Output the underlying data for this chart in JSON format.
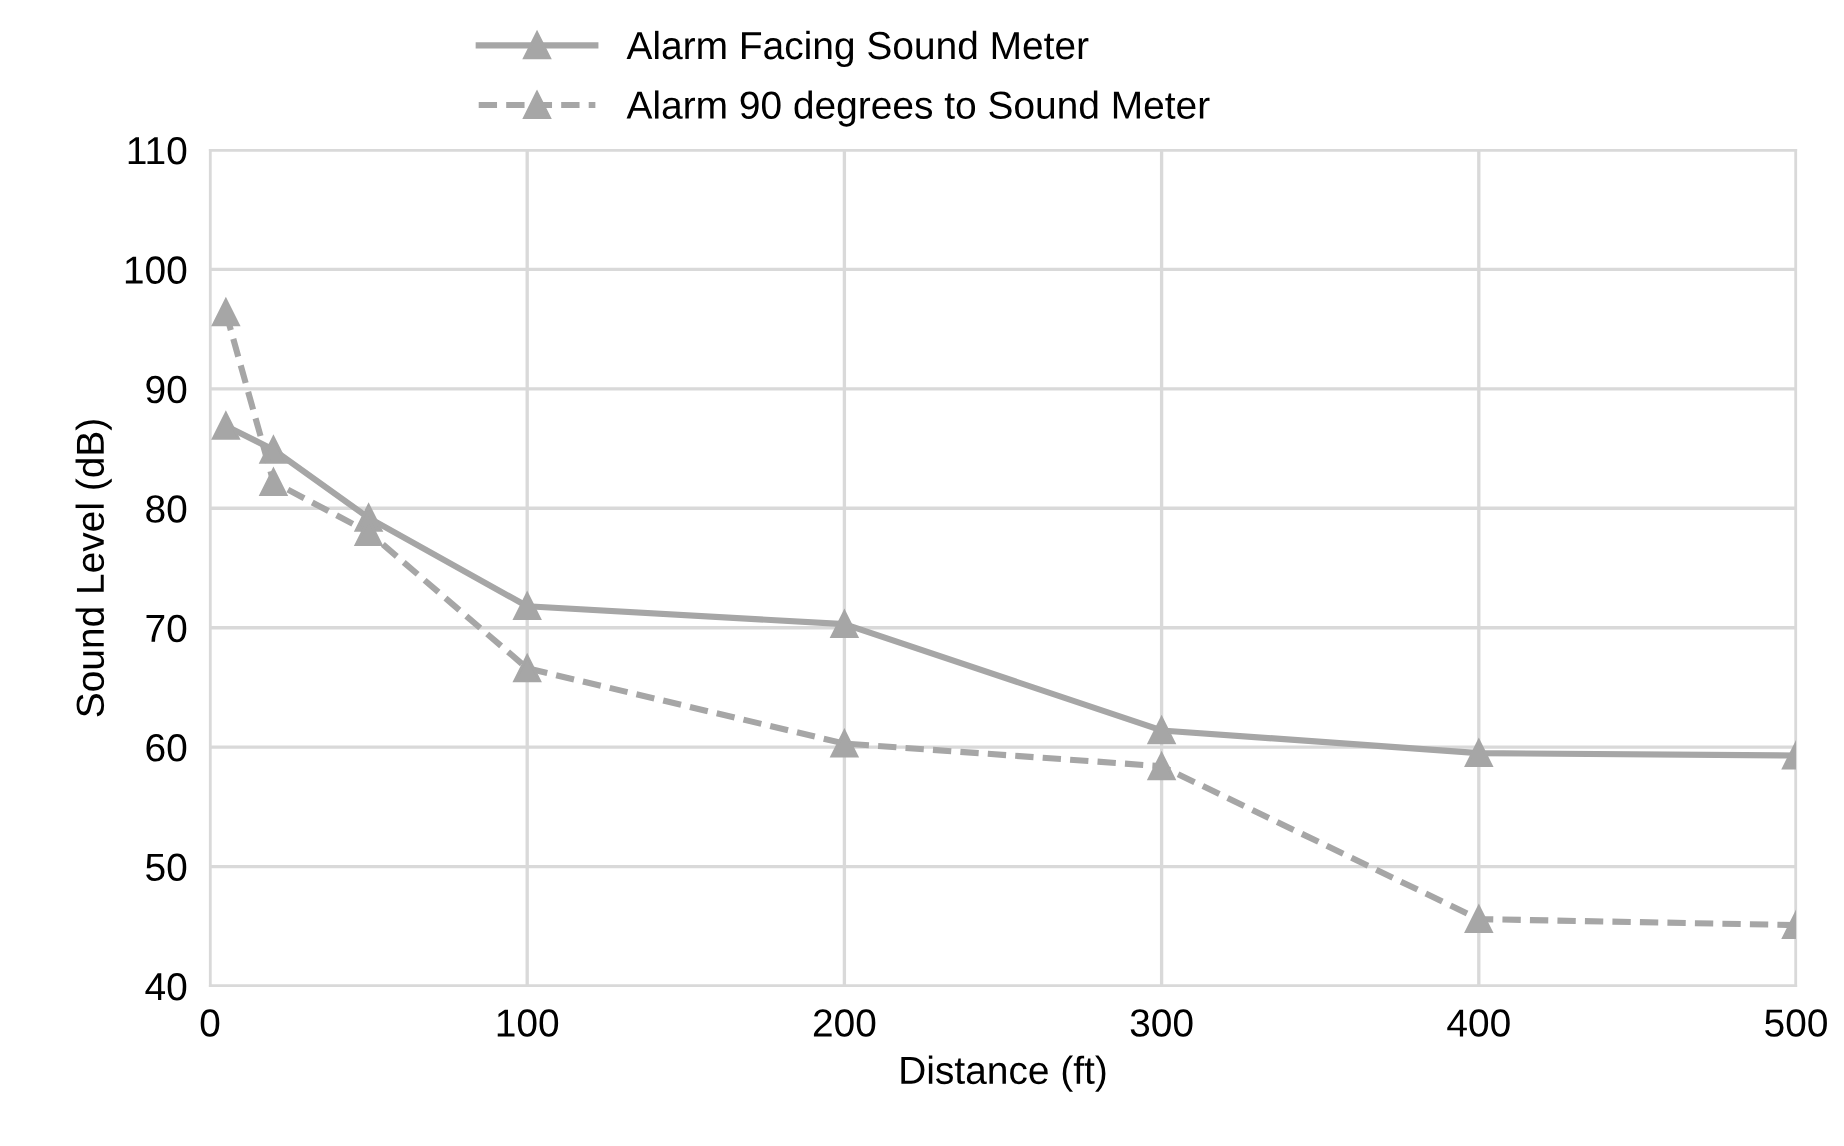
{
  "chart_data": {
    "type": "line",
    "xlabel": "Distance (ft)",
    "ylabel": "Sound Level (dB)",
    "x": [
      5,
      20,
      50,
      100,
      200,
      300,
      400,
      500
    ],
    "series": [
      {
        "name": "Alarm Facing Sound Meter",
        "color": "#a6a6a6",
        "line_style": "solid",
        "values": [
          86.9,
          84.9,
          79.2,
          71.8,
          70.3,
          61.4,
          59.5,
          59.3
        ]
      },
      {
        "name": "Alarm 90 degrees to Sound Meter",
        "color": "#a6a6a6",
        "line_style": "dashed",
        "values": [
          96.4,
          82.2,
          78.0,
          66.6,
          60.3,
          58.4,
          45.6,
          45.1
        ]
      }
    ],
    "marker": "triangle",
    "xlim": [
      0,
      500
    ],
    "ylim": [
      40,
      110
    ],
    "xticks": [
      0,
      100,
      200,
      300,
      400,
      500
    ],
    "yticks": [
      40,
      50,
      60,
      70,
      80,
      90,
      100,
      110
    ],
    "grid": true,
    "legend": "top"
  }
}
